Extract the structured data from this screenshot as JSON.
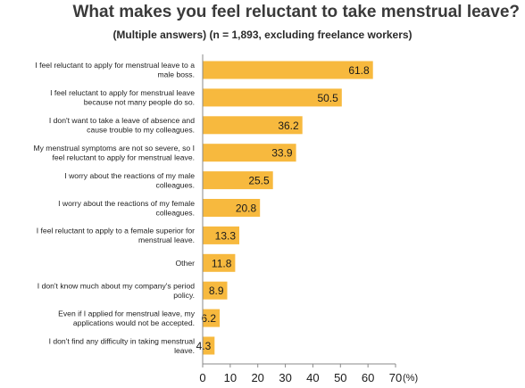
{
  "chart_data": {
    "type": "bar",
    "orientation": "horizontal",
    "title": "What makes you feel reluctant to take menstrual leave?",
    "subtitle": "(Multiple answers) (n = 1,893, excluding freelance workers)",
    "categories": [
      [
        "I feel reluctant to apply for menstrual leave to a",
        "male boss."
      ],
      [
        "I feel reluctant to apply for menstrual leave",
        "because not many people do so."
      ],
      [
        "I don't want to take a leave of absence and",
        "cause trouble to my colleagues."
      ],
      [
        "My menstrual symptoms are not so severe, so I",
        "feel reluctant to apply for menstrual leave."
      ],
      [
        "I worry about the reactions of my male",
        "colleagues."
      ],
      [
        "I worry about the reactions of my female",
        "colleagues."
      ],
      [
        "I feel reluctant to apply to a female superior for",
        "menstrual leave."
      ],
      [
        "Other"
      ],
      [
        "I don't know much about my company's period",
        "policy."
      ],
      [
        "Even if I applied for menstrual leave, my",
        "applications would not be accepted."
      ],
      [
        "I don't find any difficulty in taking menstrual",
        "leave."
      ]
    ],
    "values": [
      61.8,
      50.5,
      36.2,
      33.9,
      25.5,
      20.8,
      13.3,
      11.8,
      8.9,
      6.2,
      4.3
    ],
    "value_labels": [
      "61.8",
      "50.5",
      "36.2",
      "33.9",
      "25.5",
      "20.8",
      "13.3",
      "11.8",
      "8.9",
      "6.2",
      "4.3"
    ],
    "xlim": [
      0,
      70
    ],
    "xticks": [
      0,
      10,
      20,
      30,
      40,
      50,
      60,
      70
    ],
    "x_unit": "(%)",
    "bar_color": "#f7b93e",
    "axis_color": "#8a8a8a",
    "grid": false,
    "legend": "none"
  }
}
